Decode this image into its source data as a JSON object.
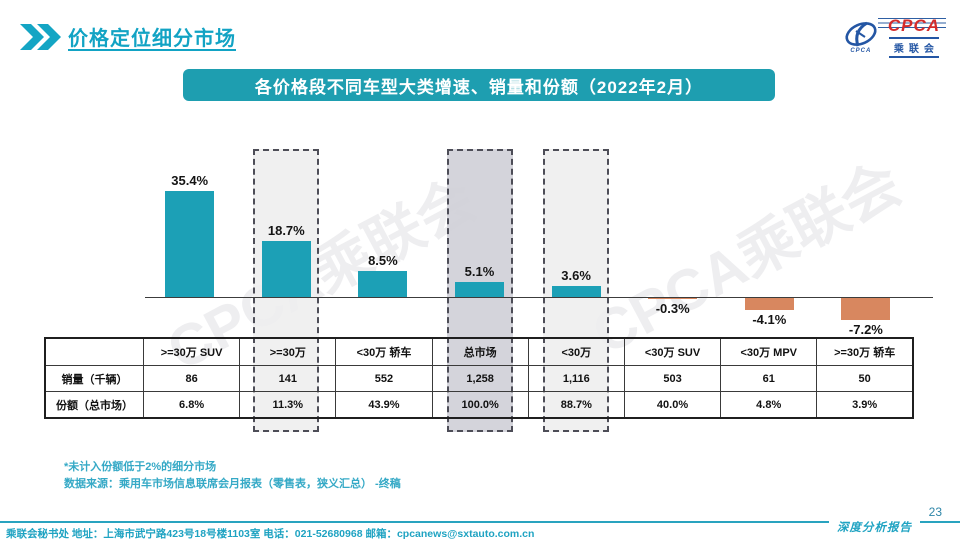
{
  "header": {
    "title": "价格定位细分市场"
  },
  "logo": {
    "cpca": "CPCA",
    "cn": "乘联会",
    "emblem_text": "CPCA"
  },
  "banner": {
    "text": "各价格段不同车型大类增速、销量和份额（2022年2月）",
    "bg": "#1E9EB0"
  },
  "watermark": {
    "text": "CPCA乘联会"
  },
  "chart_data": {
    "type": "bar",
    "title": "各价格段不同车型大类增速、销量和份额（2022年2月）",
    "categories": [
      ">=30万 SUV",
      ">=30万",
      "<30万 轿车",
      "总市场",
      "<30万",
      "<30万 SUV",
      "<30万 MPV",
      ">=30万 轿车"
    ],
    "series": [
      {
        "name": "增速",
        "unit": "%",
        "values": [
          35.4,
          18.7,
          8.5,
          5.1,
          3.6,
          -0.3,
          -4.1,
          -7.2
        ],
        "labels": [
          "35.4%",
          "18.7%",
          "8.5%",
          "5.1%",
          "3.6%",
          "-0.3%",
          "-4.1%",
          "-7.2%"
        ]
      },
      {
        "name": "销量（千辆）",
        "values": [
          86,
          141,
          552,
          1258,
          1116,
          503,
          61,
          50
        ]
      },
      {
        "name": "份额（总市场）",
        "unit": "%",
        "values": [
          6.8,
          11.3,
          43.9,
          100.0,
          88.7,
          40.0,
          4.8,
          3.9
        ]
      }
    ],
    "bar_color_positive": "#1CA0B6",
    "bar_color_negative": "#D8875F",
    "highlights": [
      {
        "index": 1,
        "fill": "rgba(238,238,238,0.88)"
      },
      {
        "index": 3,
        "fill": "rgba(208,208,216,0.92)"
      },
      {
        "index": 4,
        "fill": "rgba(238,238,238,0.88)"
      }
    ],
    "legend": false,
    "grid": false,
    "baseline_value": 0
  },
  "table": {
    "corner": "",
    "columns": [
      ">=30万 SUV",
      ">=30万",
      "<30万 轿车",
      "总市场",
      "<30万",
      "<30万 SUV",
      "<30万 MPV",
      ">=30万 轿车"
    ],
    "rows": [
      {
        "label": "销量（千辆）",
        "values": [
          "86",
          "141",
          "552",
          "1,258",
          "1,116",
          "503",
          "61",
          "50"
        ]
      },
      {
        "label": "份额（总市场）",
        "values": [
          "6.8%",
          "11.3%",
          "43.9%",
          "100.0%",
          "88.7%",
          "40.0%",
          "4.8%",
          "3.9%"
        ]
      }
    ]
  },
  "notes": [
    "*未计入份额低于2%的细分市场",
    "数据来源：乘用车市场信息联席会月报表（零售表，狭义汇总） -终稿"
  ],
  "footer": {
    "contact": "乘联会秘书处   地址：上海市武宁路423号18号楼1103室 电话：021-52680968  邮箱：cpcanews@sxtauto.com.cn",
    "report_label": "深度分析报告",
    "page_number": "23"
  }
}
